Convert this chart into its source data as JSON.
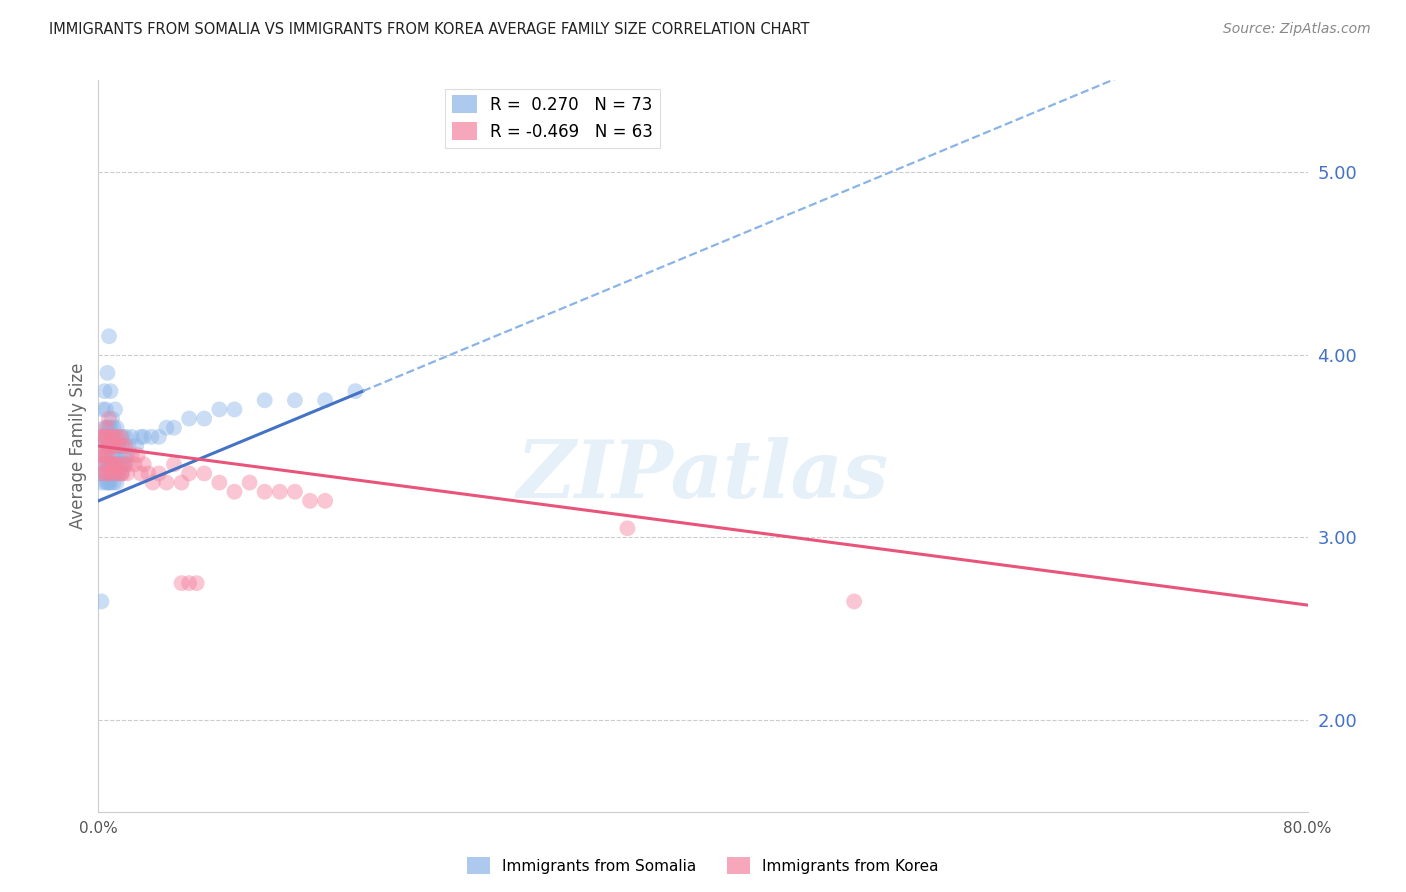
{
  "title": "IMMIGRANTS FROM SOMALIA VS IMMIGRANTS FROM KOREA AVERAGE FAMILY SIZE CORRELATION CHART",
  "source": "Source: ZipAtlas.com",
  "ylabel": "Average Family Size",
  "xlim": [
    0.0,
    0.8
  ],
  "ylim": [
    1.5,
    5.5
  ],
  "yticks": [
    2.0,
    3.0,
    4.0,
    5.0
  ],
  "xticks": [
    0.0,
    0.1,
    0.2,
    0.3,
    0.4,
    0.5,
    0.6,
    0.7,
    0.8
  ],
  "xtick_labels": [
    "0.0%",
    "",
    "",
    "",
    "",
    "",
    "",
    "",
    "80.0%"
  ],
  "somalia_color": "#8ab4e8",
  "korea_color": "#f4829e",
  "somalia_R": 0.27,
  "somalia_N": 73,
  "korea_R": -0.469,
  "korea_N": 63,
  "background_color": "#ffffff",
  "grid_color": "#cccccc",
  "axis_color": "#4472c4",
  "watermark": "ZIPatlas",
  "legend_label_somalia": "Immigrants from Somalia",
  "legend_label_korea": "Immigrants from Korea",
  "somalia_x": [
    0.001,
    0.002,
    0.002,
    0.003,
    0.003,
    0.003,
    0.004,
    0.004,
    0.004,
    0.004,
    0.005,
    0.005,
    0.005,
    0.005,
    0.006,
    0.006,
    0.006,
    0.006,
    0.006,
    0.007,
    0.007,
    0.007,
    0.007,
    0.007,
    0.008,
    0.008,
    0.008,
    0.008,
    0.008,
    0.009,
    0.009,
    0.009,
    0.009,
    0.01,
    0.01,
    0.01,
    0.01,
    0.011,
    0.011,
    0.011,
    0.012,
    0.012,
    0.012,
    0.013,
    0.013,
    0.014,
    0.014,
    0.015,
    0.015,
    0.016,
    0.016,
    0.017,
    0.018,
    0.018,
    0.019,
    0.02,
    0.022,
    0.025,
    0.028,
    0.03,
    0.035,
    0.04,
    0.045,
    0.05,
    0.06,
    0.07,
    0.08,
    0.09,
    0.11,
    0.13,
    0.15,
    0.17,
    0.002
  ],
  "somalia_y": [
    3.35,
    3.3,
    3.5,
    3.4,
    3.55,
    3.7,
    3.35,
    3.45,
    3.6,
    3.8,
    3.3,
    3.42,
    3.55,
    3.7,
    3.3,
    3.4,
    3.5,
    3.6,
    3.9,
    3.3,
    3.4,
    3.5,
    3.6,
    4.1,
    3.3,
    3.4,
    3.5,
    3.6,
    3.8,
    3.35,
    3.45,
    3.55,
    3.65,
    3.3,
    3.4,
    3.5,
    3.6,
    3.35,
    3.45,
    3.7,
    3.3,
    3.45,
    3.6,
    3.35,
    3.5,
    3.4,
    3.55,
    3.35,
    3.5,
    3.4,
    3.55,
    3.45,
    3.4,
    3.55,
    3.45,
    3.5,
    3.55,
    3.5,
    3.55,
    3.55,
    3.55,
    3.55,
    3.6,
    3.6,
    3.65,
    3.65,
    3.7,
    3.7,
    3.75,
    3.75,
    3.75,
    3.8,
    2.65
  ],
  "korea_x": [
    0.001,
    0.002,
    0.002,
    0.003,
    0.003,
    0.004,
    0.004,
    0.005,
    0.005,
    0.005,
    0.006,
    0.006,
    0.006,
    0.007,
    0.007,
    0.007,
    0.008,
    0.008,
    0.009,
    0.009,
    0.01,
    0.01,
    0.011,
    0.011,
    0.012,
    0.012,
    0.013,
    0.013,
    0.014,
    0.015,
    0.015,
    0.016,
    0.016,
    0.017,
    0.018,
    0.019,
    0.02,
    0.022,
    0.024,
    0.026,
    0.028,
    0.03,
    0.033,
    0.036,
    0.04,
    0.045,
    0.05,
    0.055,
    0.06,
    0.07,
    0.08,
    0.09,
    0.1,
    0.11,
    0.12,
    0.13,
    0.14,
    0.15,
    0.35,
    0.5,
    0.055,
    0.06,
    0.065
  ],
  "korea_y": [
    3.45,
    3.35,
    3.55,
    3.45,
    3.55,
    3.4,
    3.55,
    3.35,
    3.45,
    3.6,
    3.35,
    3.45,
    3.55,
    3.4,
    3.5,
    3.65,
    3.35,
    3.5,
    3.4,
    3.55,
    3.35,
    3.5,
    3.4,
    3.55,
    3.4,
    3.55,
    3.35,
    3.5,
    3.4,
    3.35,
    3.55,
    3.35,
    3.5,
    3.4,
    3.5,
    3.35,
    3.4,
    3.45,
    3.4,
    3.45,
    3.35,
    3.4,
    3.35,
    3.3,
    3.35,
    3.3,
    3.4,
    3.3,
    3.35,
    3.35,
    3.3,
    3.25,
    3.3,
    3.25,
    3.25,
    3.25,
    3.2,
    3.2,
    3.05,
    2.65,
    2.75,
    2.75,
    2.75
  ],
  "trend_som_x0": 0.0,
  "trend_som_x_split": 0.175,
  "trend_som_x1": 0.8,
  "trend_kor_x0": 0.0,
  "trend_kor_x1": 0.8
}
